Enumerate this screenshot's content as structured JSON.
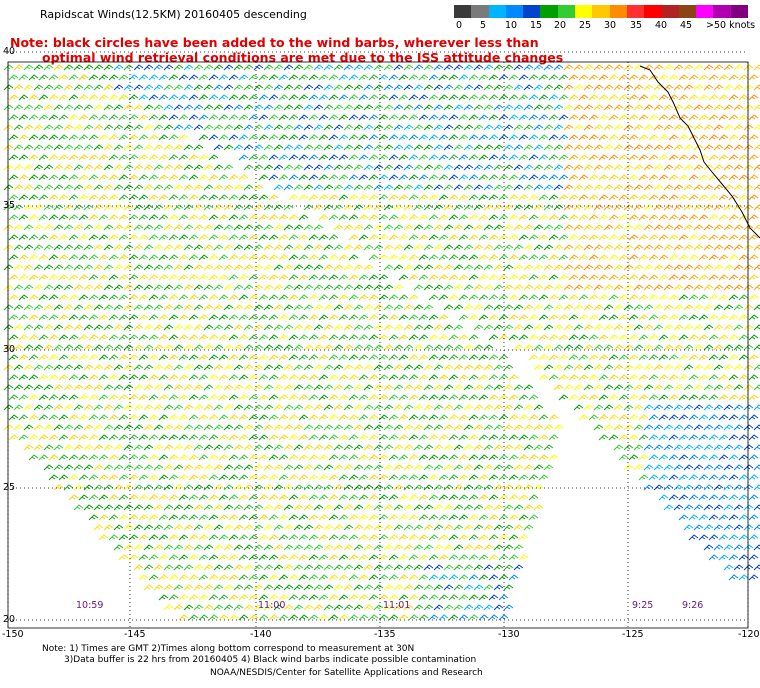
{
  "header": {
    "title": "Rapidscat Winds(12.5KM) 20160405 descending",
    "note_line1": "Note: black circles have been added to the wind barbs, wherever less than",
    "note_line2": "optimal wind retrieval conditions are met due to the ISS attitude changes"
  },
  "speed_scale": {
    "colors": [
      "#3a3a3a",
      "#7a7a7a",
      "#00b4ff",
      "#0088ff",
      "#0044cc",
      "#00a000",
      "#33cc33",
      "#ffff00",
      "#ffc800",
      "#ff8c00",
      "#ff3030",
      "#ff0000",
      "#b22222",
      "#8b4513",
      "#ff00ff",
      "#b000b0",
      "#800080"
    ],
    "ticks": [
      {
        "label": "0",
        "x": 456
      },
      {
        "label": "5",
        "x": 480
      },
      {
        "label": "10",
        "x": 505
      },
      {
        "label": "15",
        "x": 530
      },
      {
        "label": "20",
        "x": 554
      },
      {
        "label": "25",
        "x": 579
      },
      {
        "label": "30",
        "x": 604
      },
      {
        "label": "35",
        "x": 630
      },
      {
        "label": "40",
        "x": 655
      },
      {
        "label": "45",
        "x": 680
      },
      {
        "label": ">50 knots",
        "x": 706
      }
    ]
  },
  "latitudes": [
    {
      "label": "40",
      "y": 52
    },
    {
      "label": "35",
      "y": 206
    },
    {
      "label": "30",
      "y": 350
    },
    {
      "label": "25",
      "y": 488
    },
    {
      "label": "20",
      "y": 620
    }
  ],
  "longitudes": [
    {
      "label": "-150",
      "x": 2
    },
    {
      "label": "-145",
      "x": 124
    },
    {
      "label": "-140",
      "x": 250
    },
    {
      "label": "-135",
      "x": 374
    },
    {
      "label": "-130",
      "x": 498
    },
    {
      "label": "-125",
      "x": 622
    },
    {
      "label": "-120",
      "x": 738
    }
  ],
  "pass_times": [
    {
      "label": "10:59",
      "x": 76
    },
    {
      "label": "11:00",
      "x": 258
    },
    {
      "label": "11:01",
      "x": 383
    },
    {
      "label": "9:25",
      "x": 632
    },
    {
      "label": "9:26",
      "x": 682
    }
  ],
  "footer": {
    "line1": "Note: 1) Times are GMT 2)Times along bottom correspond to measurement at 30N",
    "line2": "3)Data buffer is 22 hrs from 20160405 4) Black wind barbs indicate possible contamination",
    "line3": "NOAA/NESDIS/Center for Satellite Applications and Research"
  }
}
